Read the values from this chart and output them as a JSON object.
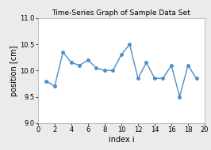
{
  "title": "Time-Series Graph of Sample Data Set",
  "xlabel": "index i",
  "ylabel": "position [cm]",
  "x": [
    1,
    2,
    3,
    4,
    5,
    6,
    7,
    8,
    9,
    10,
    11,
    12,
    13,
    14,
    15,
    16,
    17,
    18,
    19
  ],
  "y": [
    9.8,
    9.7,
    10.35,
    10.15,
    10.1,
    10.2,
    10.05,
    10.0,
    10.0,
    10.3,
    10.5,
    9.85,
    10.15,
    9.85,
    9.85,
    10.1,
    9.5,
    10.1,
    9.85
  ],
  "xlim": [
    0,
    20
  ],
  "ylim": [
    9.0,
    11.0
  ],
  "xticks": [
    0,
    2,
    4,
    6,
    8,
    10,
    12,
    14,
    16,
    18,
    20
  ],
  "yticks": [
    9.0,
    9.5,
    10.0,
    10.5,
    11.0
  ],
  "line_color": "#4e8fc7",
  "marker": "o",
  "marker_size": 2.5,
  "line_width": 1.0,
  "bg_color": "#ebebeb",
  "plot_bg_color": "#ffffff",
  "grid_color": "#ffffff",
  "title_fontsize": 6.5,
  "label_fontsize": 7,
  "tick_fontsize": 6
}
